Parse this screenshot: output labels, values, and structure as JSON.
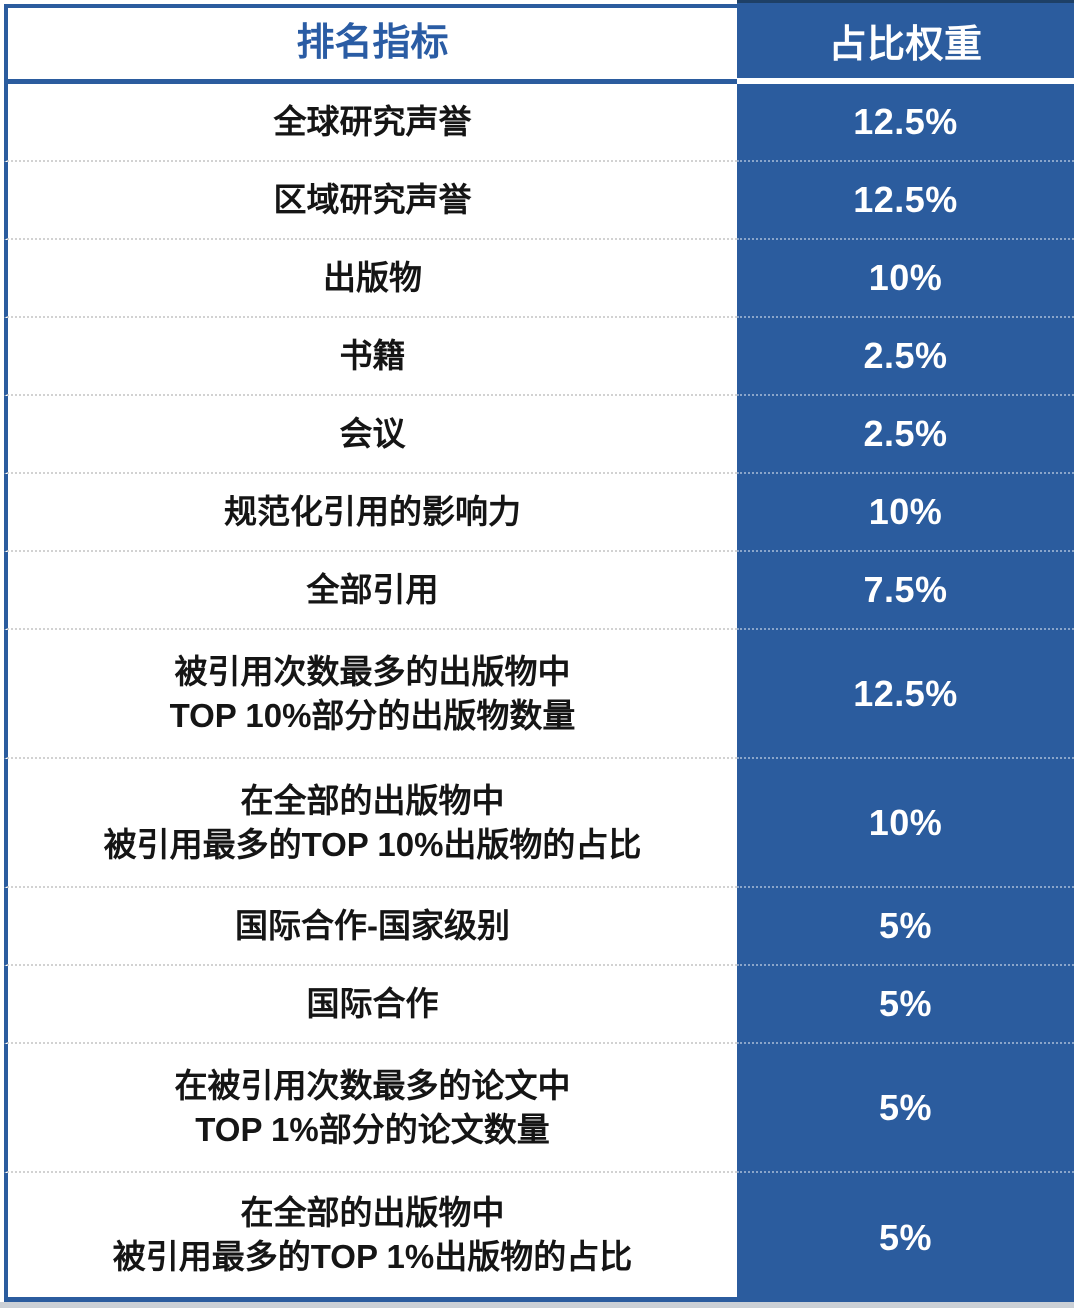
{
  "table": {
    "header": {
      "indicator": "排名指标",
      "weight": "占比权重"
    },
    "rows": [
      {
        "label_lines": [
          "全球研究声誉"
        ],
        "weight": "12.5%"
      },
      {
        "label_lines": [
          "区域研究声誉"
        ],
        "weight": "12.5%"
      },
      {
        "label_lines": [
          "出版物"
        ],
        "weight": "10%"
      },
      {
        "label_lines": [
          "书籍"
        ],
        "weight": "2.5%"
      },
      {
        "label_lines": [
          "会议"
        ],
        "weight": "2.5%"
      },
      {
        "label_lines": [
          "规范化引用的影响力"
        ],
        "weight": "10%"
      },
      {
        "label_lines": [
          "全部引用"
        ],
        "weight": "7.5%"
      },
      {
        "label_lines": [
          "被引用次数最多的出版物中",
          "TOP 10%部分的出版物数量"
        ],
        "weight": "12.5%"
      },
      {
        "label_lines": [
          "在全部的出版物中",
          "被引用最多的TOP 10%出版物的占比"
        ],
        "weight": "10%"
      },
      {
        "label_lines": [
          "国际合作-国家级别"
        ],
        "weight": "5%"
      },
      {
        "label_lines": [
          "国际合作"
        ],
        "weight": "5%"
      },
      {
        "label_lines": [
          "在被引用次数最多的论文中",
          "TOP 1%部分的论文数量"
        ],
        "weight": "5%"
      },
      {
        "label_lines": [
          "在全部的出版物中",
          "被引用最多的TOP 1%出版物的占比"
        ],
        "weight": "5%"
      }
    ]
  },
  "colors": {
    "primary_blue": "#2b5c9e",
    "header_text_blue": "#2a5ca4",
    "body_text": "#151515",
    "separator_gray": "#d2d2d2"
  }
}
